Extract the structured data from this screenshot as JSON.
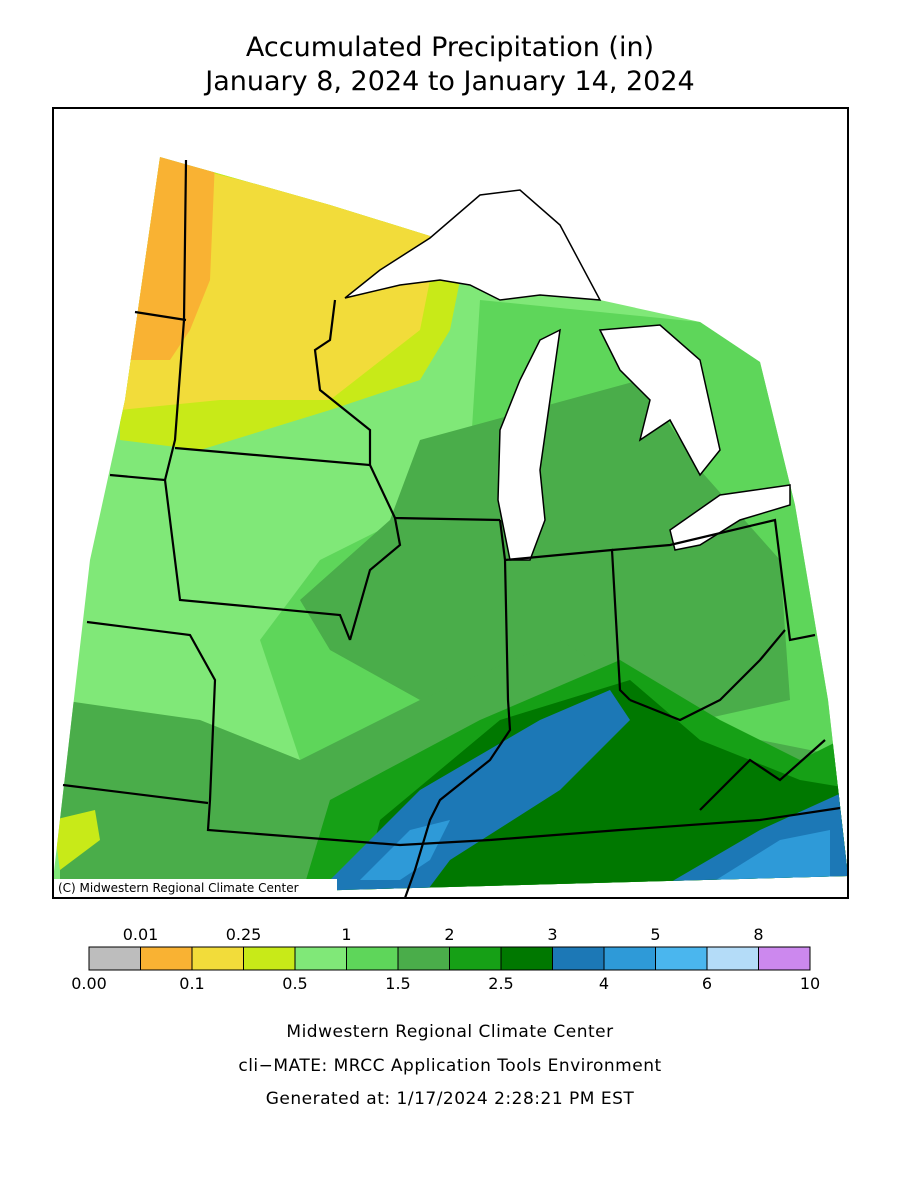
{
  "title": [
    "Accumulated Precipitation (in)",
    "January 8, 2024 to January 14, 2024"
  ],
  "copyright": "(C) Midwestern Regional Climate Center",
  "legend": {
    "bins": [
      {
        "value": 0,
        "label": "0.00"
      },
      0.01,
      0.1,
      0.25,
      0.5,
      1,
      1.5,
      2,
      2.5,
      3,
      4,
      5,
      6,
      8,
      10
    ],
    "colors": [
      "#bdbdbd",
      "#f9b233",
      "#f2dc3a",
      "#c8ea18",
      "#80e878",
      "#5ed65a",
      "#4aad4a",
      "#16a016",
      "#007800",
      "#1c78b6",
      "#2e9ad8",
      "#4ab6ee",
      "#b4dcf8",
      "#cc88ee"
    ]
  },
  "footer": [
    "Midwestern Regional Climate Center",
    "cli−MATE: MRCC Application Tools Environment",
    "Generated at: 1/17/2024 2:28:21 PM EST"
  ]
}
